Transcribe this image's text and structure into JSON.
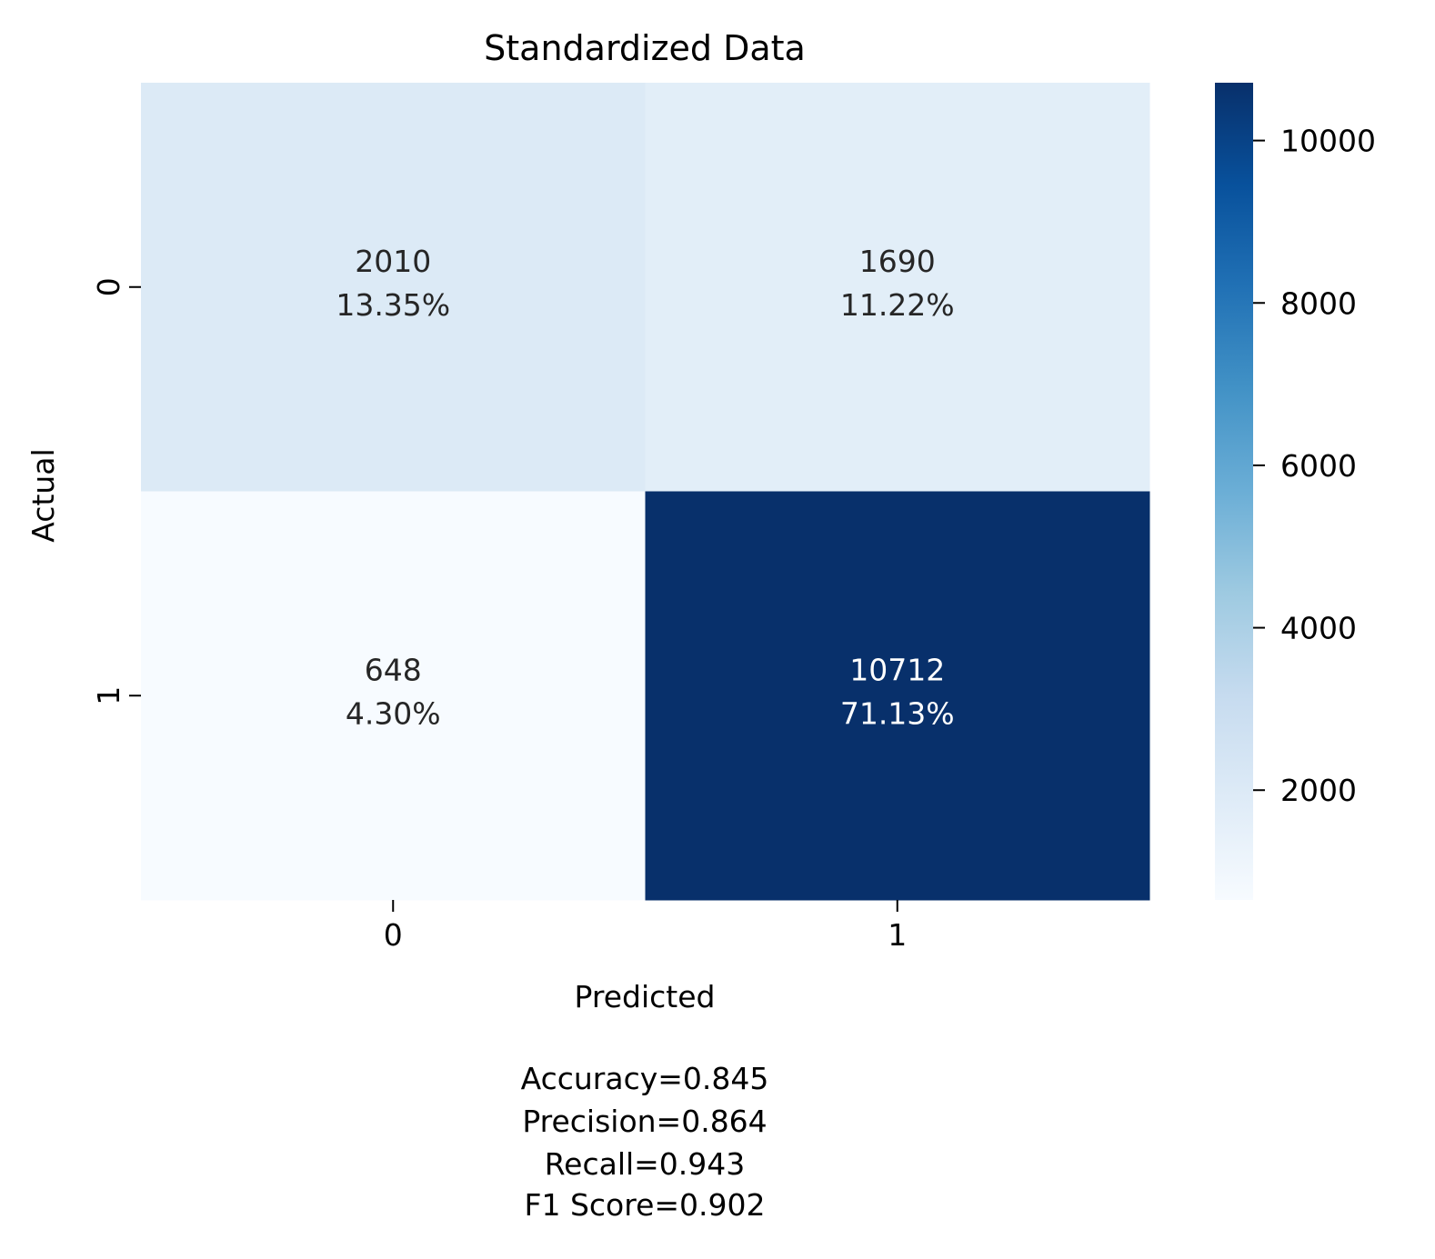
{
  "chart_data": {
    "type": "heatmap",
    "title": "Standardized Data",
    "xlabel": "Predicted",
    "ylabel": "Actual",
    "x_categories": [
      "0",
      "1"
    ],
    "y_categories": [
      "0",
      "1"
    ],
    "cells": [
      [
        {
          "count": 2010,
          "count_label": "2010",
          "percent_label": "13.35%"
        },
        {
          "count": 1690,
          "count_label": "1690",
          "percent_label": "11.22%"
        }
      ],
      [
        {
          "count": 648,
          "count_label": "648",
          "percent_label": "4.30%"
        },
        {
          "count": 10712,
          "count_label": "10712",
          "percent_label": "71.13%"
        }
      ]
    ],
    "colorbar": {
      "colormap": "Blues",
      "range": [
        648,
        10712
      ],
      "ticks": [
        2000,
        4000,
        6000,
        8000,
        10000
      ],
      "tick_labels": [
        "2000",
        "4000",
        "6000",
        "8000",
        "10000"
      ]
    },
    "grid": false,
    "metrics": [
      "Accuracy=0.845",
      "Precision=0.864",
      "Recall=0.943",
      "F1 Score=0.902"
    ]
  },
  "colors": {
    "dark_annotation": "#262626",
    "light_annotation": "#ffffff",
    "axis_text": "#000000"
  }
}
